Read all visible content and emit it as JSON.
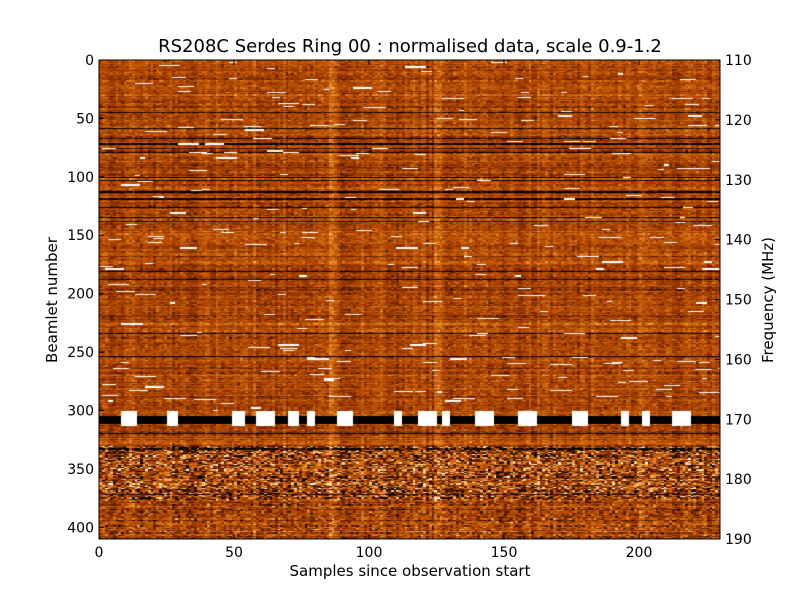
{
  "chart_data": {
    "type": "heatmap",
    "title": "RS208C Serdes Ring 00 : normalised data, scale 0.9-1.2",
    "xlabel": "Samples since observation start",
    "ylabel": "Beamlet number",
    "y2label": "Frequency (MHz)",
    "xlim": [
      0,
      230
    ],
    "ylim": [
      410,
      0
    ],
    "y2lim": [
      190,
      110
    ],
    "x_ticks": [
      0,
      50,
      100,
      150,
      200
    ],
    "y_ticks": [
      0,
      50,
      100,
      150,
      200,
      250,
      300,
      350,
      400
    ],
    "y2_ticks": [
      110,
      120,
      130,
      140,
      150,
      160,
      170,
      180,
      190
    ],
    "color_scale": {
      "min": 0.9,
      "max": 1.2
    },
    "colormap": [
      "#000000",
      "#5a1a00",
      "#b04500",
      "#e07d1a",
      "#ffd08a",
      "#ffffff"
    ],
    "grid": false,
    "features": {
      "baseline_level": 1.02,
      "bright_block_row_range": [
        300,
        312
      ],
      "bright_block_x": [
        [
          8,
          13
        ],
        [
          25,
          28
        ],
        [
          49,
          53
        ],
        [
          58,
          64
        ],
        [
          70,
          73
        ],
        [
          77,
          79
        ],
        [
          88,
          93
        ],
        [
          109,
          111
        ],
        [
          118,
          124
        ],
        [
          127,
          129
        ],
        [
          139,
          145
        ],
        [
          155,
          161
        ],
        [
          175,
          180
        ],
        [
          193,
          195
        ],
        [
          201,
          203
        ],
        [
          212,
          218
        ]
      ],
      "dark_band_rows": [
        [
          304,
          310
        ]
      ],
      "noisy_row_range": [
        330,
        375
      ],
      "dark_lines_rows": [
        44,
        58,
        66,
        71,
        75,
        78,
        100,
        102,
        112,
        118,
        125,
        134,
        137,
        180,
        187,
        233,
        253,
        319,
        332,
        371
      ],
      "bright_streak_x": [
        86,
        125
      ]
    }
  }
}
